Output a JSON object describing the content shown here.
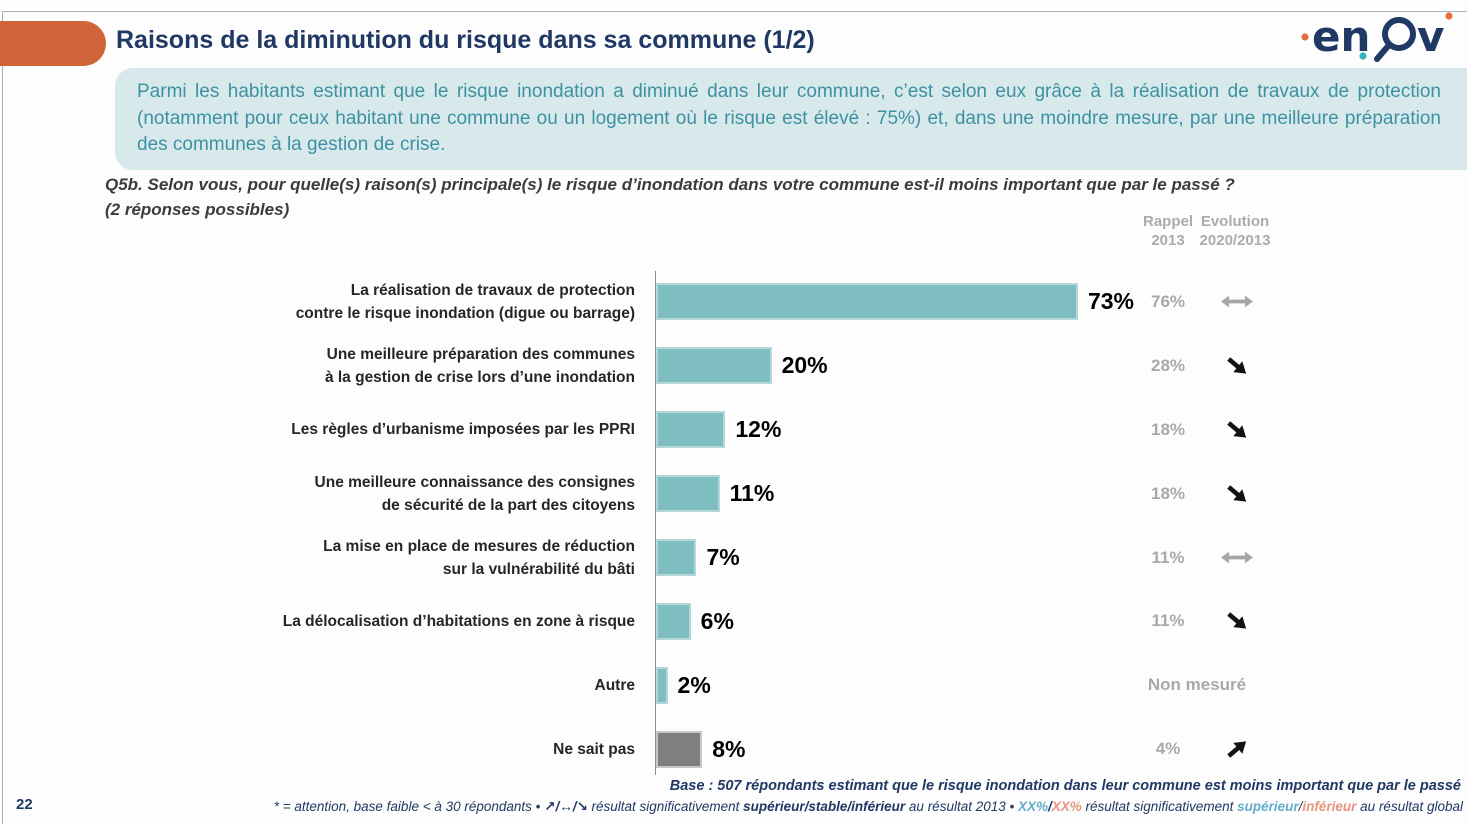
{
  "page_number": "22",
  "header": {
    "title": "Raisons de la diminution du risque dans sa commune (1/2)",
    "logo_text": "enov"
  },
  "intro": {
    "text": "Parmi les habitants estimant que le risque inondation a diminué dans leur commune, c’est selon eux grâce à la réalisation de travaux de protection (notamment pour ceux habitant une commune ou un logement où le risque est élevé : 75%) et, dans une moindre mesure, par une meilleure préparation des communes à la gestion de crise."
  },
  "question": {
    "line1": "Q5b. Selon vous, pour quelle(s) raison(s) principale(s) le risque d’inondation dans votre commune est-il moins important que par le passé ?",
    "line2": "(2 réponses possibles)"
  },
  "columns": {
    "rappel_line1": "Rappel",
    "rappel_line2": "2013",
    "evolution_line1": "Evolution",
    "evolution_line2": "2020/2013"
  },
  "chart_data": {
    "type": "bar",
    "orientation": "horizontal",
    "unit": "%",
    "categories": [
      "La réalisation de travaux de protection\ncontre le risque inondation (digue ou barrage)",
      "Une meilleure préparation des communes\nà la gestion de crise lors d’une inondation",
      "Les règles d’urbanisme imposées par les PPRI",
      "Une meilleure connaissance des consignes\nde sécurité de la part des citoyens",
      "La mise en place de mesures de réduction\nsur la vulnérabilité du bâti",
      "La délocalisation d’habitations en zone à risque",
      "Autre",
      "Ne sait pas"
    ],
    "values": [
      73,
      20,
      12,
      11,
      7,
      6,
      2,
      8
    ],
    "value_labels": [
      "73%",
      "20%",
      "12%",
      "11%",
      "7%",
      "6%",
      "2%",
      "8%"
    ],
    "bar_styles": [
      "teal",
      "teal",
      "teal",
      "teal",
      "teal",
      "teal",
      "teal",
      "gray"
    ],
    "rappel_2013": [
      "76%",
      "28%",
      "18%",
      "18%",
      "11%",
      "11%",
      "Non mesuré",
      "4%"
    ],
    "evolution_2020_2013": [
      "stable",
      "down",
      "down",
      "down",
      "stable",
      "down",
      "none",
      "up"
    ],
    "xlim": [
      0,
      100
    ],
    "grid": false,
    "legend": false
  },
  "base_note": "Base : 507 répondants estimant que le risque inondation dans leur commune est moins important que par le passé",
  "footer": {
    "segments": [
      {
        "text": "* = attention, base faible < à 30 répondants • ",
        "style": "normal"
      },
      {
        "text": "↗/↔/↘ ",
        "style": "arrows"
      },
      {
        "text": " résultat significativement ",
        "style": "normal"
      },
      {
        "text": "supérieur/stable/inférieur",
        "style": "bold"
      },
      {
        "text": " au résultat 2013 • ",
        "style": "normal"
      },
      {
        "text": "XX%",
        "style": "blue-bold"
      },
      {
        "text": "/",
        "style": "bold"
      },
      {
        "text": "XX%",
        "style": "salmon-bold"
      },
      {
        "text": " résultat significativement ",
        "style": "normal"
      },
      {
        "text": "supérieur",
        "style": "blue-bold"
      },
      {
        "text": "/",
        "style": "normal"
      },
      {
        "text": "inférieur",
        "style": "salmon-bold"
      },
      {
        "text": " au résultat global",
        "style": "normal"
      }
    ]
  },
  "colors": {
    "accent_orange": "#cf6539",
    "title_navy": "#1f3864",
    "intro_bg": "#d8e9eb",
    "intro_text": "#3e91a2",
    "bar_teal": "#7ebec0",
    "bar_teal_border": "#b2d8d9",
    "bar_gray": "#7f7f7f",
    "muted_gray": "#a9a9a9",
    "footer_blue": "#62aecc",
    "footer_salmon": "#e8947e"
  }
}
